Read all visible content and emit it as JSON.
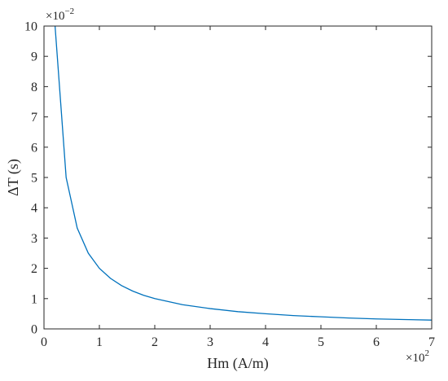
{
  "chart_data": {
    "type": "line",
    "title": "",
    "xlabel": "Hm (A/m)",
    "ylabel": "ΔT (s)",
    "xlim": [
      0,
      7
    ],
    "ylim": [
      0,
      10
    ],
    "x_ticks": [
      "0",
      "1",
      "2",
      "3",
      "4",
      "5",
      "6",
      "7"
    ],
    "y_ticks": [
      "0",
      "1",
      "2",
      "3",
      "4",
      "5",
      "6",
      "7",
      "8",
      "9",
      "10"
    ],
    "x_multiplier": {
      "base": "×10",
      "exponent": "2"
    },
    "y_multiplier": {
      "base": "×10",
      "exponent": "−2"
    },
    "grid": false,
    "line_color": "#0072BD",
    "series": [
      {
        "x": [
          0.2,
          0.4,
          0.6,
          0.8,
          1.0,
          1.2,
          1.4,
          1.6,
          1.8,
          2.0,
          2.5,
          3.0,
          3.5,
          4.0,
          4.5,
          5.0,
          5.5,
          6.0,
          6.5,
          7.0
        ],
        "values": [
          10.0,
          5.0,
          3.33,
          2.5,
          2.0,
          1.67,
          1.43,
          1.25,
          1.11,
          1.0,
          0.8,
          0.67,
          0.57,
          0.5,
          0.44,
          0.4,
          0.36,
          0.33,
          0.31,
          0.29
        ]
      }
    ]
  }
}
